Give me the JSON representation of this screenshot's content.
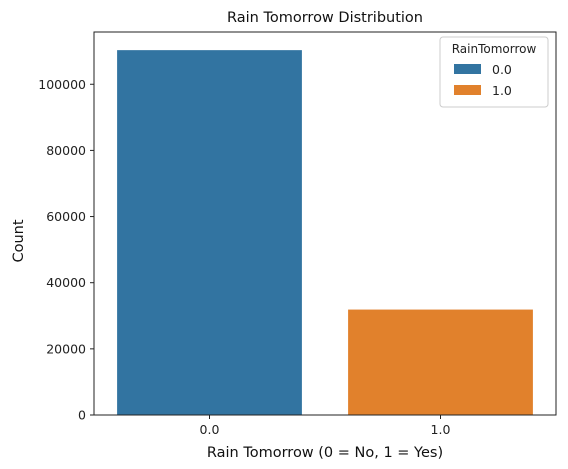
{
  "chart_data": {
    "type": "bar",
    "title": "Rain Tomorrow Distribution",
    "xlabel": "Rain Tomorrow (0 = No, 1 = Yes)",
    "ylabel": "Count",
    "categories": [
      "0.0",
      "1.0"
    ],
    "values": [
      110316,
      31877
    ],
    "colors": [
      "#3274a1",
      "#e1812c"
    ],
    "ylim": [
      0,
      115800
    ],
    "yticks": [
      0,
      20000,
      40000,
      60000,
      80000,
      100000
    ],
    "ytick_labels": [
      "0",
      "20000",
      "40000",
      "60000",
      "80000",
      "100000"
    ],
    "grid": false,
    "legend": {
      "title": "RainTomorrow",
      "placement": "top-right",
      "entries": [
        "0.0",
        "1.0"
      ]
    }
  }
}
